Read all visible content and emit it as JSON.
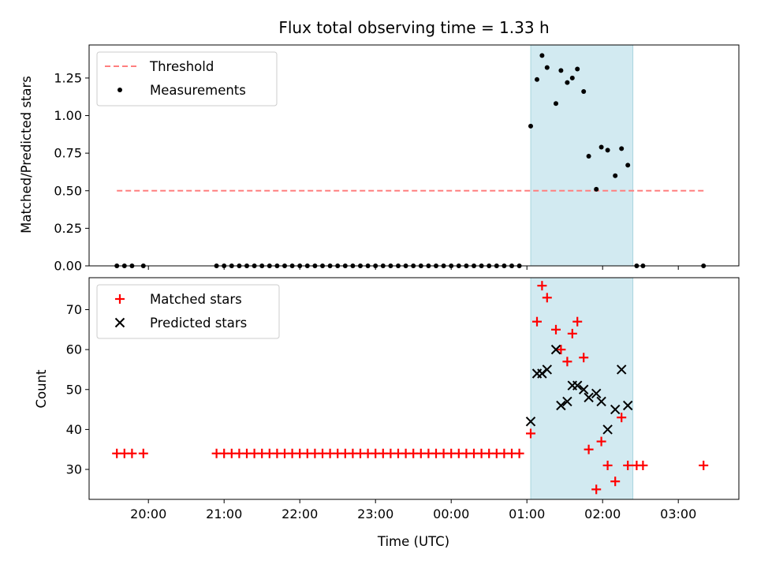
{
  "chart_data": [
    {
      "type": "scatter",
      "title": "Flux total observing time = 1.33 h",
      "xlabel": "",
      "ylabel": "Matched/Predicted stars",
      "ylim": [
        0,
        1.47
      ],
      "yticks": [
        "0.00",
        "0.25",
        "0.50",
        "0.75",
        "1.00",
        "1.25"
      ],
      "legend_position": "top-left",
      "highlight": {
        "x_from": "01:03",
        "x_to": "02:24",
        "color": "#add8e6"
      },
      "threshold": {
        "name": "Threshold",
        "value": 0.5,
        "x_from": "19:35",
        "x_to": "03:20",
        "color": "#ff7f7f"
      },
      "series": [
        {
          "name": "Measurements",
          "color": "#000000",
          "points": [
            [
              "19:35",
              0.0
            ],
            [
              "19:41",
              0.0
            ],
            [
              "19:47",
              0.0
            ],
            [
              "19:56",
              0.0
            ],
            [
              "20:54",
              0.0
            ],
            [
              "21:00",
              0.0
            ],
            [
              "21:06",
              0.0
            ],
            [
              "21:12",
              0.0
            ],
            [
              "21:18",
              0.0
            ],
            [
              "21:24",
              0.0
            ],
            [
              "21:30",
              0.0
            ],
            [
              "21:36",
              0.0
            ],
            [
              "21:42",
              0.0
            ],
            [
              "21:48",
              0.0
            ],
            [
              "21:54",
              0.0
            ],
            [
              "22:00",
              0.0
            ],
            [
              "22:06",
              0.0
            ],
            [
              "22:12",
              0.0
            ],
            [
              "22:18",
              0.0
            ],
            [
              "22:24",
              0.0
            ],
            [
              "22:30",
              0.0
            ],
            [
              "22:36",
              0.0
            ],
            [
              "22:42",
              0.0
            ],
            [
              "22:48",
              0.0
            ],
            [
              "22:54",
              0.0
            ],
            [
              "23:00",
              0.0
            ],
            [
              "23:06",
              0.0
            ],
            [
              "23:12",
              0.0
            ],
            [
              "23:18",
              0.0
            ],
            [
              "23:24",
              0.0
            ],
            [
              "23:30",
              0.0
            ],
            [
              "23:36",
              0.0
            ],
            [
              "23:42",
              0.0
            ],
            [
              "23:48",
              0.0
            ],
            [
              "23:54",
              0.0
            ],
            [
              "00:00",
              0.0
            ],
            [
              "00:06",
              0.0
            ],
            [
              "00:12",
              0.0
            ],
            [
              "00:18",
              0.0
            ],
            [
              "00:24",
              0.0
            ],
            [
              "00:30",
              0.0
            ],
            [
              "00:36",
              0.0
            ],
            [
              "00:42",
              0.0
            ],
            [
              "00:48",
              0.0
            ],
            [
              "00:54",
              0.0
            ],
            [
              "01:03",
              0.93
            ],
            [
              "01:08",
              1.24
            ],
            [
              "01:12",
              1.4
            ],
            [
              "01:16",
              1.32
            ],
            [
              "01:23",
              1.08
            ],
            [
              "01:27",
              1.3
            ],
            [
              "01:32",
              1.22
            ],
            [
              "01:36",
              1.25
            ],
            [
              "01:40",
              1.31
            ],
            [
              "01:45",
              1.16
            ],
            [
              "01:49",
              0.73
            ],
            [
              "01:55",
              0.51
            ],
            [
              "01:59",
              0.79
            ],
            [
              "02:04",
              0.77
            ],
            [
              "02:10",
              0.6
            ],
            [
              "02:15",
              0.78
            ],
            [
              "02:20",
              0.67
            ],
            [
              "02:27",
              0.0
            ],
            [
              "02:32",
              0.0
            ],
            [
              "03:20",
              0.0
            ]
          ]
        }
      ]
    },
    {
      "type": "scatter",
      "title": "",
      "xlabel": "Time (UTC)",
      "ylabel": "Count",
      "ylim": [
        22.5,
        78
      ],
      "yticks": [
        "30",
        "40",
        "50",
        "60",
        "70"
      ],
      "xticks": [
        "20:00",
        "21:00",
        "22:00",
        "23:00",
        "00:00",
        "01:00",
        "02:00",
        "03:00"
      ],
      "legend_position": "top-left",
      "highlight": {
        "x_from": "01:03",
        "x_to": "02:24",
        "color": "#add8e6"
      },
      "series": [
        {
          "name": "Matched stars",
          "color": "#ff0000",
          "marker": "plus",
          "points": [
            [
              "19:35",
              34
            ],
            [
              "19:41",
              34
            ],
            [
              "19:47",
              34
            ],
            [
              "19:56",
              34
            ],
            [
              "20:54",
              34
            ],
            [
              "21:00",
              34
            ],
            [
              "21:06",
              34
            ],
            [
              "21:12",
              34
            ],
            [
              "21:18",
              34
            ],
            [
              "21:24",
              34
            ],
            [
              "21:30",
              34
            ],
            [
              "21:36",
              34
            ],
            [
              "21:42",
              34
            ],
            [
              "21:48",
              34
            ],
            [
              "21:54",
              34
            ],
            [
              "22:00",
              34
            ],
            [
              "22:06",
              34
            ],
            [
              "22:12",
              34
            ],
            [
              "22:18",
              34
            ],
            [
              "22:24",
              34
            ],
            [
              "22:30",
              34
            ],
            [
              "22:36",
              34
            ],
            [
              "22:42",
              34
            ],
            [
              "22:48",
              34
            ],
            [
              "22:54",
              34
            ],
            [
              "23:00",
              34
            ],
            [
              "23:06",
              34
            ],
            [
              "23:12",
              34
            ],
            [
              "23:18",
              34
            ],
            [
              "23:24",
              34
            ],
            [
              "23:30",
              34
            ],
            [
              "23:36",
              34
            ],
            [
              "23:42",
              34
            ],
            [
              "23:48",
              34
            ],
            [
              "23:54",
              34
            ],
            [
              "00:00",
              34
            ],
            [
              "00:06",
              34
            ],
            [
              "00:12",
              34
            ],
            [
              "00:18",
              34
            ],
            [
              "00:24",
              34
            ],
            [
              "00:30",
              34
            ],
            [
              "00:36",
              34
            ],
            [
              "00:42",
              34
            ],
            [
              "00:48",
              34
            ],
            [
              "00:54",
              34
            ],
            [
              "01:03",
              39
            ],
            [
              "01:08",
              67
            ],
            [
              "01:12",
              76
            ],
            [
              "01:16",
              73
            ],
            [
              "01:23",
              65
            ],
            [
              "01:27",
              60
            ],
            [
              "01:32",
              57
            ],
            [
              "01:36",
              64
            ],
            [
              "01:40",
              67
            ],
            [
              "01:45",
              58
            ],
            [
              "01:49",
              35
            ],
            [
              "01:55",
              25
            ],
            [
              "01:59",
              37
            ],
            [
              "02:04",
              31
            ],
            [
              "02:10",
              27
            ],
            [
              "02:15",
              43
            ],
            [
              "02:20",
              31
            ],
            [
              "02:27",
              31
            ],
            [
              "02:32",
              31
            ],
            [
              "03:20",
              31
            ]
          ]
        },
        {
          "name": "Predicted stars",
          "color": "#000000",
          "marker": "x",
          "points": [
            [
              "01:03",
              42
            ],
            [
              "01:08",
              54
            ],
            [
              "01:12",
              54
            ],
            [
              "01:16",
              55
            ],
            [
              "01:23",
              60
            ],
            [
              "01:27",
              46
            ],
            [
              "01:32",
              47
            ],
            [
              "01:36",
              51
            ],
            [
              "01:40",
              51
            ],
            [
              "01:45",
              50
            ],
            [
              "01:49",
              48
            ],
            [
              "01:55",
              49
            ],
            [
              "01:59",
              47
            ],
            [
              "02:04",
              40
            ],
            [
              "02:10",
              45
            ],
            [
              "02:15",
              55
            ],
            [
              "02:20",
              46
            ]
          ]
        }
      ]
    }
  ]
}
